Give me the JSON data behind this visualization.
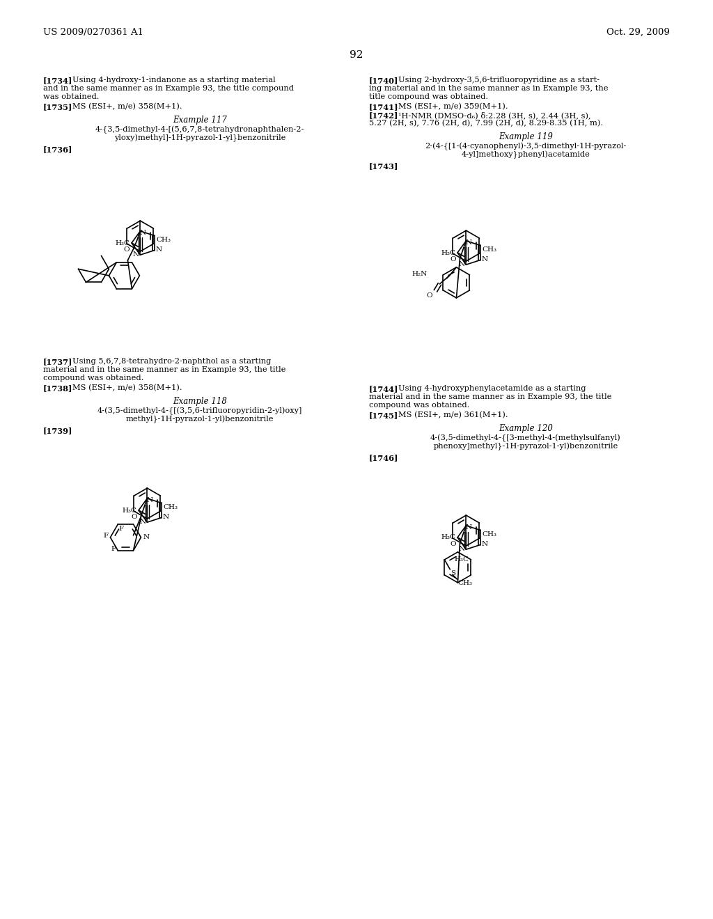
{
  "background_color": "#ffffff",
  "page_number": "92",
  "header_left": "US 2009/0270361 A1",
  "header_right": "Oct. 29, 2009",
  "font_color": "#000000"
}
